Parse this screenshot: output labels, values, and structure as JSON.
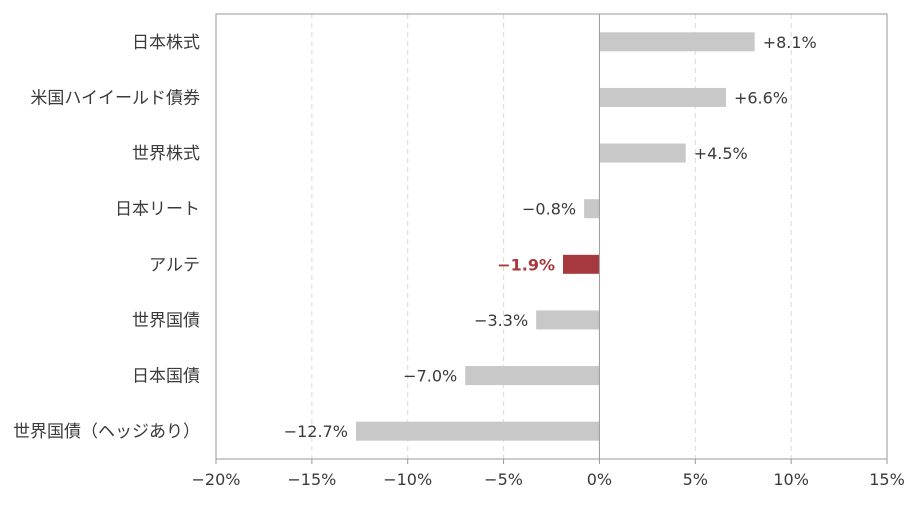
{
  "chart_data": {
    "type": "bar",
    "orientation": "horizontal",
    "categories": [
      "日本株式",
      "米国ハイイールド債券",
      "世界株式",
      "日本リート",
      "アルテ",
      "世界国債",
      "日本国債",
      "世界国債（ヘッジあり）"
    ],
    "values": [
      8.1,
      6.6,
      4.5,
      -0.8,
      -1.9,
      -3.3,
      -7.0,
      -12.7
    ],
    "value_labels": [
      "+8.1%",
      "+6.6%",
      "+4.5%",
      "−0.8%",
      "−1.9%",
      "−3.3%",
      "−7.0%",
      "−12.7%"
    ],
    "highlight_index": 4,
    "xlim": [
      -20,
      15
    ],
    "xticks": [
      -20,
      -15,
      -10,
      -5,
      0,
      5,
      10,
      15
    ],
    "xtick_labels": [
      "−20%",
      "−15%",
      "−10%",
      "−5%",
      "0%",
      "5%",
      "10%",
      "15%"
    ],
    "grid": "vertical dashed",
    "title": "",
    "xlabel": "",
    "ylabel": "",
    "colors": {
      "bar": "#c8c8c8",
      "highlight_bar": "#a6393d",
      "highlight_text": "#a6393d",
      "text": "#3a3a3a",
      "grid": "#d9d9d9",
      "axis": "#9a9a9a"
    }
  }
}
